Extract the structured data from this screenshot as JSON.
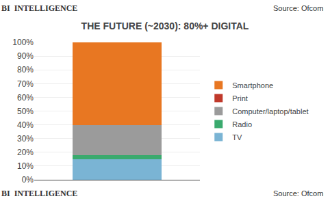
{
  "chart_data": {
    "type": "bar",
    "title": "THE FUTURE (~2030): 80%+ DIGITAL",
    "annotations": [
      "BI  INTELLIGENCE",
      "Source: Ofcom"
    ],
    "categories": [
      null
    ],
    "series": [
      {
        "name": "TV",
        "color": "#7ab4d4",
        "values": [
          15
        ]
      },
      {
        "name": "Radio",
        "color": "#3aaa6e",
        "values": [
          3
        ]
      },
      {
        "name": "Computer/laptop/tablet",
        "color": "#9b9b9b",
        "values": [
          22
        ]
      },
      {
        "name": "Print",
        "color": "#c0392b",
        "values": [
          0
        ]
      },
      {
        "name": "Smartphone",
        "color": "#e87722",
        "values": [
          60
        ]
      }
    ],
    "stacked": true,
    "ylim": [
      0,
      100
    ],
    "yticks": [
      {
        "value": 0,
        "label": "0%"
      },
      {
        "value": 10,
        "label": "10%"
      },
      {
        "value": 20,
        "label": "20%"
      },
      {
        "value": 30,
        "label": "30%"
      },
      {
        "value": 40,
        "label": "40%"
      },
      {
        "value": 50,
        "label": "50%"
      },
      {
        "value": 60,
        "label": "60%"
      },
      {
        "value": 70,
        "label": "70%"
      },
      {
        "value": 80,
        "label": "80%"
      },
      {
        "value": 90,
        "label": "90%"
      },
      {
        "value": 100,
        "label": "100%"
      }
    ],
    "grid": true,
    "legend": "right",
    "tick_labels": "y"
  }
}
